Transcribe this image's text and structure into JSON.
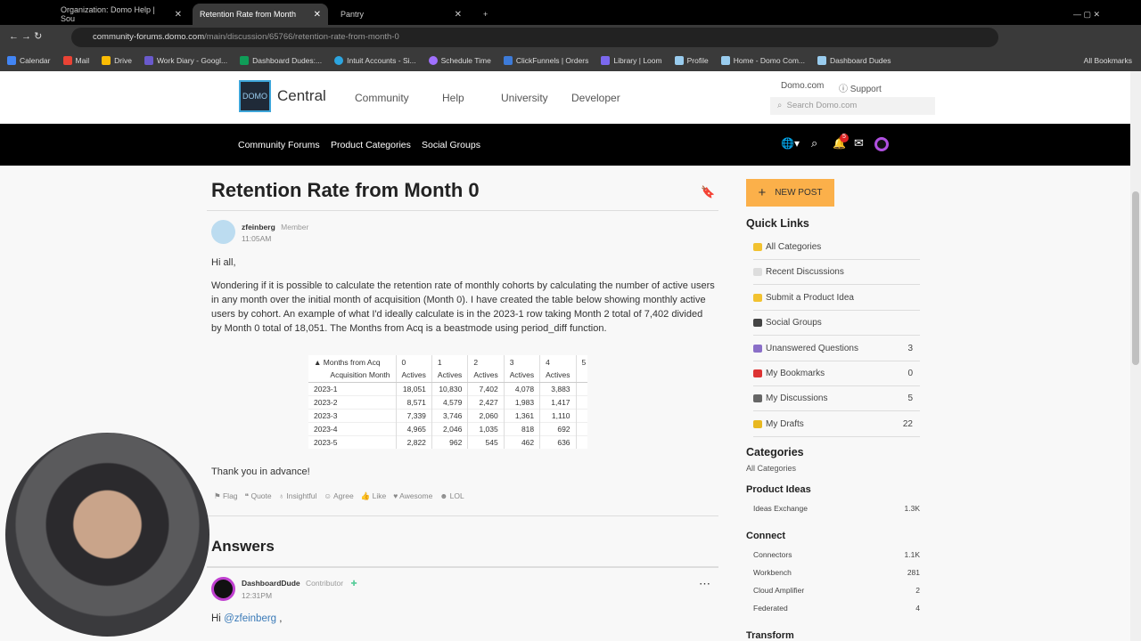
{
  "browser": {
    "tabs": [
      {
        "title": "Organization: Domo Help | Sou"
      },
      {
        "title": "Retention Rate from Month"
      },
      {
        "title": "Pantry"
      }
    ],
    "url_host": "community-forums.domo.com",
    "url_path": "/main/discussion/65766/retention-rate-from-month-0",
    "bookmarks": [
      "Calendar",
      "Mail",
      "Drive",
      "Work Diary - Googl...",
      "Dashboard Dudes:...",
      "Intuit Accounts - Si...",
      "Schedule Time",
      "ClickFunnels | Orders",
      "Library | Loom",
      "Profile",
      "Home - Domo Com...",
      "Dashboard Dudes"
    ],
    "all_bookmarks": "All Bookmarks"
  },
  "header": {
    "logo": "DOMO",
    "brand": "Central",
    "nav": [
      "Community",
      "Help",
      "University",
      "Developer"
    ],
    "domo_link": "Domo.com",
    "support": "Support",
    "search_placeholder": "Search Domo.com"
  },
  "subnav": {
    "items": [
      "Community Forums",
      "Product Categories",
      "Social Groups"
    ],
    "notification_count": "5"
  },
  "post": {
    "title": "Retention Rate from Month 0",
    "author": "zfeinberg",
    "role": "Member",
    "time": "11:05AM",
    "greeting": "Hi all,",
    "body": "Wondering if it is possible to calculate the retention rate of monthly cohorts by calculating the number of active users in any month over the initial month of acquisition (Month 0). I have created the table below showing monthly active users by cohort. An example of what I'd ideally calculate is in the 2023-1 row taking Month 2 total of 7,402 divided by Month 0 total of 18,051. The Months from Acq is a beastmode using period_diff function.",
    "closing": "Thank you in advance!",
    "table": {
      "pivot_label": "Months from Acq",
      "row_label": "Acquisition Month",
      "months": [
        "0",
        "1",
        "2",
        "3",
        "4",
        "5"
      ],
      "measure": "Actives",
      "rows": [
        [
          "2023-1",
          "18,051",
          "10,830",
          "7,402",
          "4,078",
          "3,883"
        ],
        [
          "2023-2",
          "8,571",
          "4,579",
          "2,427",
          "1,983",
          "1,417"
        ],
        [
          "2023-3",
          "7,339",
          "3,746",
          "2,060",
          "1,361",
          "1,110"
        ],
        [
          "2023-4",
          "4,965",
          "2,046",
          "1,035",
          "818",
          "692"
        ],
        [
          "2023-5",
          "2,822",
          "962",
          "545",
          "462",
          "636"
        ]
      ]
    },
    "reactions": [
      "Flag",
      "Quote",
      "Insightful",
      "Agree",
      "Like",
      "Awesome",
      "LOL"
    ]
  },
  "answers": {
    "heading": "Answers",
    "author": "DashboardDude",
    "role": "Contributor",
    "time": "12:31PM",
    "greeting": "Hi",
    "mention": "@zfeinberg",
    "greeting_end": " ,"
  },
  "sidebar": {
    "new_post": "NEW POST",
    "quick_links_title": "Quick Links",
    "quick_links": [
      {
        "label": "All Categories",
        "count": "",
        "color": "#f2c230"
      },
      {
        "label": "Recent Discussions",
        "count": "",
        "color": "#ddd"
      },
      {
        "label": "Submit a Product Idea",
        "count": "",
        "color": "#f2c230"
      },
      {
        "label": "Social Groups",
        "count": "",
        "color": "#444"
      },
      {
        "label": "Unanswered Questions",
        "count": "3",
        "color": "#8a6fc8"
      },
      {
        "label": "My Bookmarks",
        "count": "0",
        "color": "#d33"
      },
      {
        "label": "My Discussions",
        "count": "5",
        "color": "#666"
      },
      {
        "label": "My Drafts",
        "count": "22",
        "color": "#e8b820"
      }
    ],
    "categories_title": "Categories",
    "all_categories": "All Categories",
    "groups": [
      {
        "title": "Product Ideas",
        "items": [
          {
            "label": "Ideas Exchange",
            "count": "1.3K"
          }
        ]
      },
      {
        "title": "Connect",
        "items": [
          {
            "label": "Connectors",
            "count": "1.1K"
          },
          {
            "label": "Workbench",
            "count": "281"
          },
          {
            "label": "Cloud Amplifier",
            "count": "2"
          },
          {
            "label": "Federated",
            "count": "4"
          }
        ]
      },
      {
        "title": "Transform",
        "items": []
      }
    ]
  }
}
